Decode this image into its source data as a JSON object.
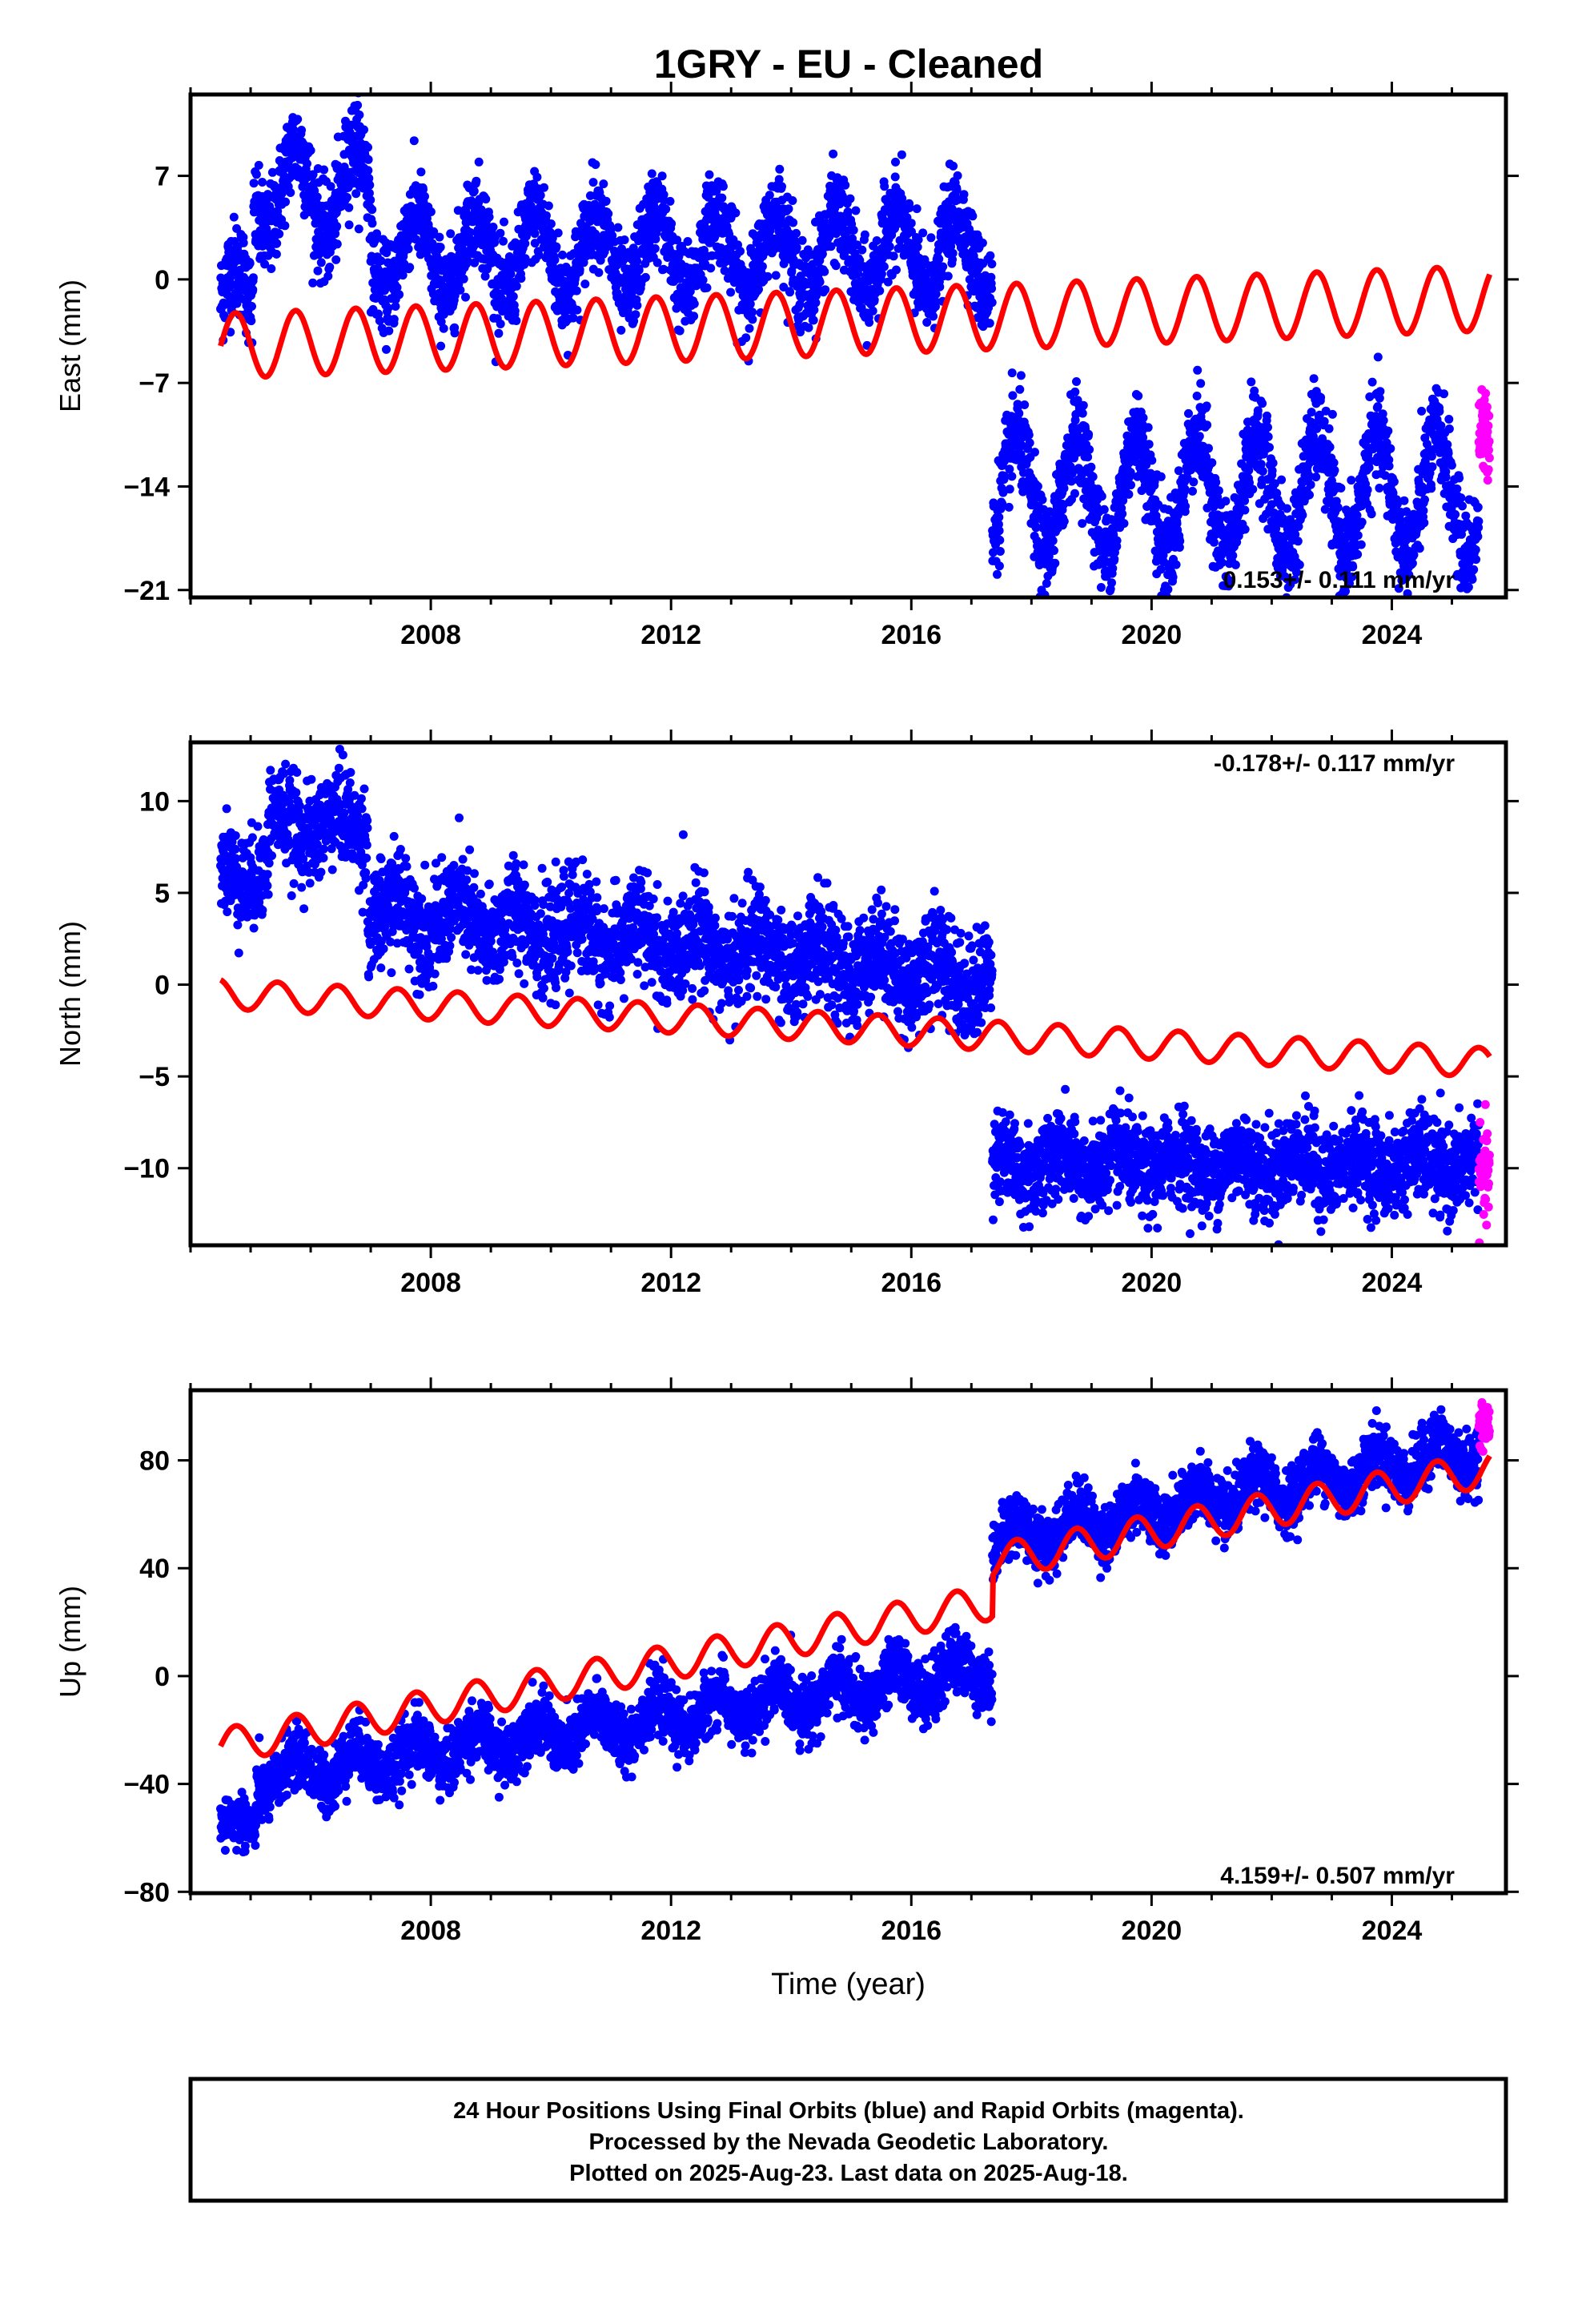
{
  "title": "1GRY  - EU - Cleaned",
  "colors": {
    "final_orbits": "#0000ff",
    "rapid_orbits": "#ff00ff",
    "model": "#ff0000",
    "frame": "#000000"
  },
  "footer": {
    "line1": "24 Hour Positions Using Final Orbits (blue) and Rapid Orbits (magenta).",
    "line2": "Processed by the Nevada Geodetic Laboratory.",
    "line3": "Plotted on 2025-Aug-23. Last data on 2025-Aug-18."
  },
  "chart_data": [
    {
      "type": "scatter",
      "ylabel": "East (mm)",
      "xlabel": "",
      "xlim": [
        2004.0,
        2025.9
      ],
      "ylim": [
        -21.5,
        12.5
      ],
      "xticks": [
        2008,
        2012,
        2016,
        2020,
        2024
      ],
      "yticks": [
        -21,
        -14,
        -7,
        0,
        7
      ],
      "rate_text": "0.153+/- 0.111 mm/yr",
      "rate_position": "bottom-right",
      "grid": false,
      "series": [
        {
          "kind": "final_orbits_segments",
          "segments": [
            {
              "start": 2004.5,
              "end": 2005.05,
              "base": -1.5,
              "amp": 2.5,
              "noise": 1.6
            },
            {
              "start": 2005.05,
              "end": 2007.0,
              "base": 6.0,
              "amp": 3.0,
              "noise": 1.6
            },
            {
              "start": 2007.0,
              "end": 2017.35,
              "base": 1.8,
              "amp": 2.7,
              "noise": 1.5
            },
            {
              "start": 2017.35,
              "end": 2025.45,
              "base": -14.5,
              "amp": 4.0,
              "noise": 1.6
            }
          ],
          "phase": 0.5
        },
        {
          "kind": "rapid_orbits",
          "start": 2025.45,
          "end": 2025.63,
          "base": -10.5,
          "noise": 1.4
        },
        {
          "kind": "model",
          "start": 2004.5,
          "end": 2025.63,
          "intercept": -4.5,
          "slope": 0.153,
          "t0": 2004.5,
          "amp": 2.2,
          "phase": 0.5
        }
      ]
    },
    {
      "type": "scatter",
      "ylabel": "North (mm)",
      "xlabel": "",
      "xlim": [
        2004.0,
        2025.9
      ],
      "ylim": [
        -14.2,
        13.2
      ],
      "xticks": [
        2008,
        2012,
        2016,
        2020,
        2024
      ],
      "yticks": [
        -10,
        -5,
        0,
        5,
        10
      ],
      "rate_text": "-0.178+/- 0.117 mm/yr",
      "rate_position": "top-right",
      "grid": false,
      "series": [
        {
          "kind": "final_orbits_segments",
          "segments": [
            {
              "start": 2004.5,
              "end": 2005.3,
              "base": 6.2,
              "amp": 0.8,
              "noise": 1.3
            },
            {
              "start": 2005.3,
              "end": 2006.95,
              "base": 8.7,
              "amp": 0.8,
              "noise": 1.3
            },
            {
              "start": 2006.95,
              "end": 2017.35,
              "base": 4.0,
              "trend": -0.35,
              "amp": 1.0,
              "noise": 1.4
            },
            {
              "start": 2017.35,
              "end": 2025.45,
              "base": -9.8,
              "amp": 0.6,
              "noise": 1.2
            }
          ],
          "phase": 0.8
        },
        {
          "kind": "rapid_orbits",
          "start": 2025.45,
          "end": 2025.63,
          "base": -10.5,
          "noise": 1.2
        },
        {
          "kind": "model",
          "start": 2004.5,
          "end": 2025.63,
          "intercept": -0.5,
          "slope": -0.178,
          "t0": 2004.5,
          "amp": 0.8,
          "phase": 0.8
        }
      ]
    },
    {
      "type": "scatter",
      "ylabel": "Up (mm)",
      "xlabel": "Time (year)",
      "xlim": [
        2004.0,
        2025.9
      ],
      "ylim": [
        -80.5,
        106
      ],
      "xticks": [
        2008,
        2012,
        2016,
        2020,
        2024
      ],
      "yticks": [
        -80,
        -40,
        0,
        40,
        80
      ],
      "rate_text": "4.159+/- 0.507 mm/yr",
      "rate_position": "bottom-right",
      "grid": false,
      "series": [
        {
          "kind": "final_orbits_segments",
          "segments": [
            {
              "start": 2004.5,
              "end": 2005.1,
              "base": -56.0,
              "amp": 3.0,
              "noise": 5.0
            },
            {
              "start": 2005.1,
              "end": 2017.35,
              "base": -38.0,
              "trend": 3.3,
              "amp": 6.0,
              "noise": 5.5
            },
            {
              "start": 2017.35,
              "end": 2025.45,
              "base": 50.0,
              "trend": 4.2,
              "amp": 6.0,
              "noise": 5.5
            }
          ],
          "phase": 0.5
        },
        {
          "kind": "rapid_orbits",
          "start": 2025.45,
          "end": 2025.63,
          "base": 93.0,
          "noise": 4.0
        },
        {
          "kind": "model",
          "start": 2004.5,
          "end": 2025.63,
          "intercept": -26.0,
          "slope": 4.159,
          "t0": 2004.5,
          "amp": 6.5,
          "phase": 0.5,
          "offset_at": 2017.35,
          "offset": 15.0
        }
      ]
    }
  ]
}
